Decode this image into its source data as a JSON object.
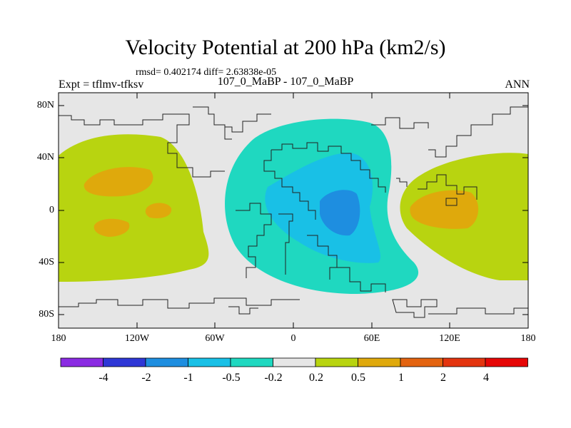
{
  "title": "Velocity Potential at 200 hPa (km2/s)",
  "stats_line": "rmsd= 0.402174 diff= 2.63838e-05",
  "left_label": "Expt = tflmv-tfksv",
  "center_label": "107_0_MaBP - 107_0_MaBP",
  "right_label": "ANN",
  "lat_ticks": [
    "80N",
    "40N",
    "0",
    "40S",
    "80S"
  ],
  "lon_ticks": [
    "180",
    "120W",
    "60W",
    "0",
    "60E",
    "120E",
    "180"
  ],
  "colorbar": {
    "colors": [
      "#8a2be2",
      "#2e37d6",
      "#1e8ee0",
      "#19c0e6",
      "#1fd8c0",
      "#e6e6e6",
      "#b8d410",
      "#dfa90c",
      "#e36310",
      "#e3340f",
      "#e60606"
    ],
    "labels": [
      "-4",
      "-2",
      "-1",
      "-0.5",
      "-0.2",
      "0.2",
      "0.5",
      "1",
      "2",
      "4"
    ]
  }
}
